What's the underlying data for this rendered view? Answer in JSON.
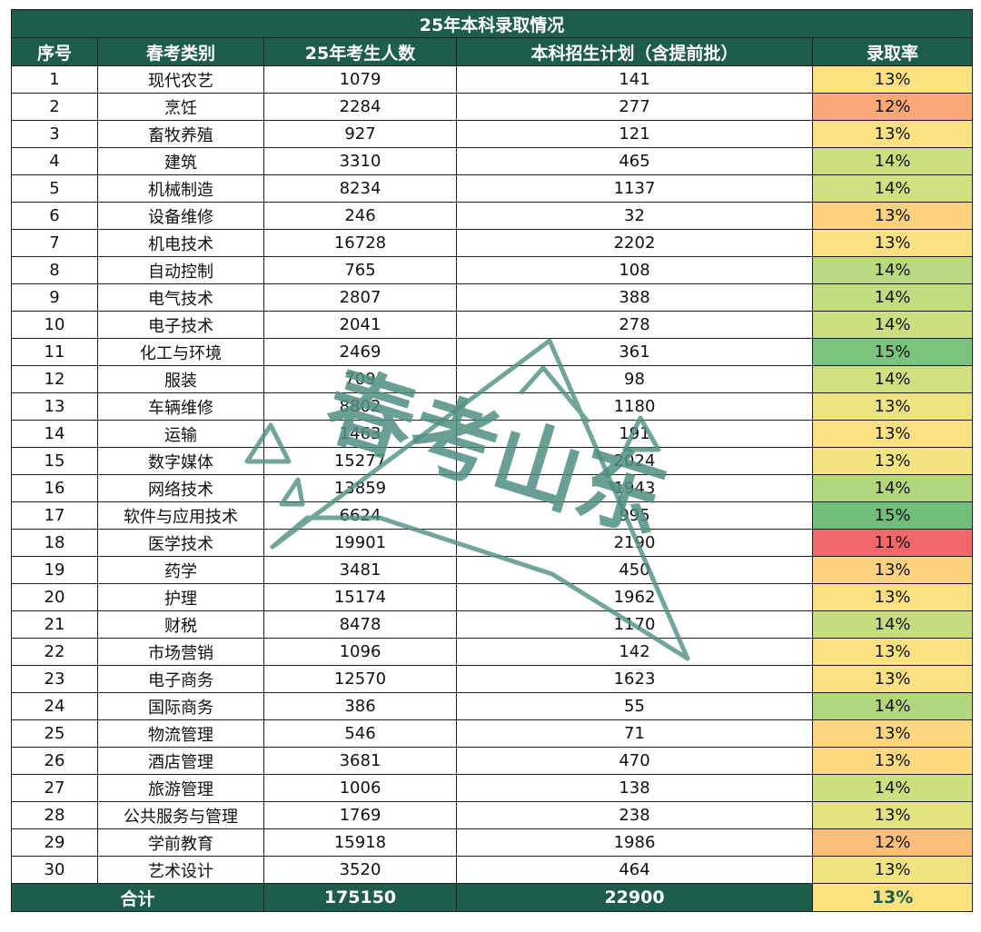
{
  "table": {
    "title": "25年本科录取情况",
    "headers": [
      "序号",
      "春考类别",
      "25年考生人数",
      "本科招生计划（含提前批）",
      "录取率"
    ],
    "rows": [
      {
        "no": "1",
        "category": "现代农艺",
        "students": "1079",
        "plan": "141",
        "rate": "13%",
        "rate_color": "#fde27f"
      },
      {
        "no": "2",
        "category": "烹饪",
        "students": "2284",
        "plan": "277",
        "rate": "12%",
        "rate_color": "#f8a977"
      },
      {
        "no": "3",
        "category": "畜牧养殖",
        "students": "927",
        "plan": "121",
        "rate": "13%",
        "rate_color": "#fde07f"
      },
      {
        "no": "4",
        "category": "建筑",
        "students": "3310",
        "plan": "465",
        "rate": "14%",
        "rate_color": "#c9df80"
      },
      {
        "no": "5",
        "category": "机械制造",
        "students": "8234",
        "plan": "1137",
        "rate": "14%",
        "rate_color": "#d2e080"
      },
      {
        "no": "6",
        "category": "设备维修",
        "students": "246",
        "plan": "32",
        "rate": "13%",
        "rate_color": "#fdd27f"
      },
      {
        "no": "7",
        "category": "机电技术",
        "students": "16728",
        "plan": "2202",
        "rate": "13%",
        "rate_color": "#fde07f"
      },
      {
        "no": "8",
        "category": "自动控制",
        "students": "765",
        "plan": "108",
        "rate": "14%",
        "rate_color": "#b9d980"
      },
      {
        "no": "9",
        "category": "电气技术",
        "students": "2807",
        "plan": "388",
        "rate": "14%",
        "rate_color": "#c2dc80"
      },
      {
        "no": "10",
        "category": "电子技术",
        "students": "2041",
        "plan": "278",
        "rate": "14%",
        "rate_color": "#c9df80"
      },
      {
        "no": "11",
        "category": "化工与环境",
        "students": "2469",
        "plan": "361",
        "rate": "15%",
        "rate_color": "#7bc47d"
      },
      {
        "no": "12",
        "category": "服装",
        "students": "709",
        "plan": "98",
        "rate": "14%",
        "rate_color": "#d0e080"
      },
      {
        "no": "13",
        "category": "车辆维修",
        "students": "8802",
        "plan": "1180",
        "rate": "13%",
        "rate_color": "#ede481"
      },
      {
        "no": "14",
        "category": "运输",
        "students": "1463",
        "plan": "191",
        "rate": "13%",
        "rate_color": "#fde07f"
      },
      {
        "no": "15",
        "category": "数字媒体",
        "students": "15277",
        "plan": "2024",
        "rate": "13%",
        "rate_color": "#f4e480"
      },
      {
        "no": "16",
        "category": "网络技术",
        "students": "13859",
        "plan": "1943",
        "rate": "14%",
        "rate_color": "#b3d780"
      },
      {
        "no": "17",
        "category": "软件与应用技术",
        "students": "6624",
        "plan": "995",
        "rate": "15%",
        "rate_color": "#6fbf7b"
      },
      {
        "no": "18",
        "category": "医学技术",
        "students": "19901",
        "plan": "2190",
        "rate": "11%",
        "rate_color": "#f2686a"
      },
      {
        "no": "19",
        "category": "药学",
        "students": "3481",
        "plan": "450",
        "rate": "13%",
        "rate_color": "#fdd37f"
      },
      {
        "no": "20",
        "category": "护理",
        "students": "15174",
        "plan": "1962",
        "rate": "13%",
        "rate_color": "#fde07f"
      },
      {
        "no": "21",
        "category": "财税",
        "students": "8478",
        "plan": "1170",
        "rate": "14%",
        "rate_color": "#c5dd80"
      },
      {
        "no": "22",
        "category": "市场营销",
        "students": "1096",
        "plan": "142",
        "rate": "13%",
        "rate_color": "#fde07f"
      },
      {
        "no": "23",
        "category": "电子商务",
        "students": "12570",
        "plan": "1623",
        "rate": "13%",
        "rate_color": "#fde07f"
      },
      {
        "no": "24",
        "category": "国际商务",
        "students": "386",
        "plan": "55",
        "rate": "14%",
        "rate_color": "#b3d780"
      },
      {
        "no": "25",
        "category": "物流管理",
        "students": "546",
        "plan": "71",
        "rate": "13%",
        "rate_color": "#fdd77f"
      },
      {
        "no": "26",
        "category": "酒店管理",
        "students": "3681",
        "plan": "470",
        "rate": "13%",
        "rate_color": "#fdd97f"
      },
      {
        "no": "27",
        "category": "旅游管理",
        "students": "1006",
        "plan": "138",
        "rate": "14%",
        "rate_color": "#cde080"
      },
      {
        "no": "28",
        "category": "公共服务与管理",
        "students": "1769",
        "plan": "238",
        "rate": "13%",
        "rate_color": "#e4e381"
      },
      {
        "no": "29",
        "category": "学前教育",
        "students": "15918",
        "plan": "1986",
        "rate": "12%",
        "rate_color": "#fbbf7b"
      },
      {
        "no": "30",
        "category": "艺术设计",
        "students": "3520",
        "plan": "464",
        "rate": "13%",
        "rate_color": "#f1e480"
      }
    ],
    "total": {
      "label": "合计",
      "students": "175150",
      "plan": "22900",
      "rate": "13%",
      "rate_color": "#fde27f"
    }
  },
  "watermark": {
    "text": "春考山东",
    "color": "#4f8f82"
  }
}
